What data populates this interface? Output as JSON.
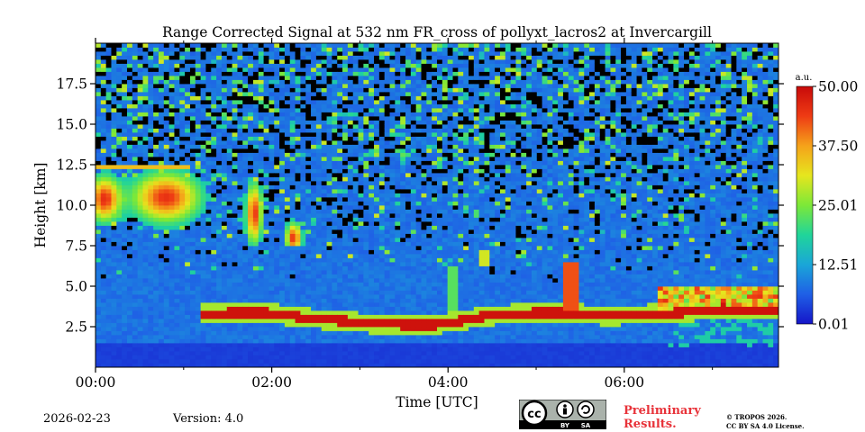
{
  "chart_data": {
    "type": "heatmap",
    "title": "Range Corrected Signal at 532 nm FR_cross of pollyxt_lacros2 at Invercargill",
    "xlabel": "Time [UTC]",
    "ylabel": "Height [km]",
    "xlim_hours": [
      0,
      7.75
    ],
    "ylim_km": [
      0,
      20
    ],
    "x_ticks": [
      {
        "value": 0,
        "label": "00:00"
      },
      {
        "value": 2,
        "label": "02:00"
      },
      {
        "value": 4,
        "label": "04:00"
      },
      {
        "value": 6,
        "label": "06:00"
      }
    ],
    "x_minor_ticks": [
      1,
      3,
      5,
      7
    ],
    "y_ticks": [
      {
        "value": 2.5,
        "label": "2.5"
      },
      {
        "value": 5.0,
        "label": "5.0"
      },
      {
        "value": 7.5,
        "label": "7.5"
      },
      {
        "value": 10.0,
        "label": "10.0"
      },
      {
        "value": 12.5,
        "label": "12.5"
      },
      {
        "value": 15.0,
        "label": "15.0"
      },
      {
        "value": 17.5,
        "label": "17.5"
      }
    ],
    "colorbar": {
      "unit": "a.u.",
      "range": [
        0.01,
        50.0
      ],
      "tick_labels": [
        "0.01",
        "12.51",
        "25.01",
        "37.50",
        "50.00"
      ],
      "tick_values": [
        0.01,
        12.51,
        25.01,
        37.5,
        50.0
      ],
      "colormap": [
        "#1515c8",
        "#1f5fe6",
        "#1aa6d8",
        "#20d59a",
        "#7ce838",
        "#e6e61e",
        "#f5a21a",
        "#ee3b14",
        "#c80a0a"
      ]
    },
    "features": [
      {
        "name": "near-surface layer",
        "time_start_h": 0.0,
        "time_end_h": 7.75,
        "height_top_km": 1.5,
        "intensity": "low"
      },
      {
        "name": "boundary layer top",
        "time_start_h": 1.2,
        "time_end_h": 7.75,
        "height_km": [
          3.3,
          3.4,
          3.0,
          2.7,
          2.6,
          3.2,
          3.4,
          3.2,
          3.3,
          3.6,
          3.5
        ],
        "intensity": "high"
      },
      {
        "name": "cirrus early",
        "time_start_h": 0.0,
        "time_end_h": 2.4,
        "height_top_km": 12.3,
        "height_base_km": 7.5,
        "intensity": "high"
      },
      {
        "name": "aerosol plume 05:25",
        "time_h": 5.4,
        "height_top_km": 6.5,
        "height_base_km": 3.3,
        "intensity": "high"
      },
      {
        "name": "late layer",
        "time_start_h": 6.4,
        "time_end_h": 7.75,
        "height_top_km": 5.0,
        "height_base_km": 3.3,
        "intensity": "high"
      }
    ]
  },
  "footer": {
    "date": "2026-02-23",
    "version": "Version: 4.0",
    "preliminary_line1": "Preliminary",
    "preliminary_line2": "Results.",
    "copyright_line1": "© TROPOS 2026.",
    "copyright_line2": "CC BY SA 4.0 License.",
    "license_badge": {
      "cc": "cc",
      "by": "BY",
      "sa": "SA"
    }
  },
  "colors": {
    "background_field": "#0e2e8e",
    "noise_dark": "#000000"
  }
}
